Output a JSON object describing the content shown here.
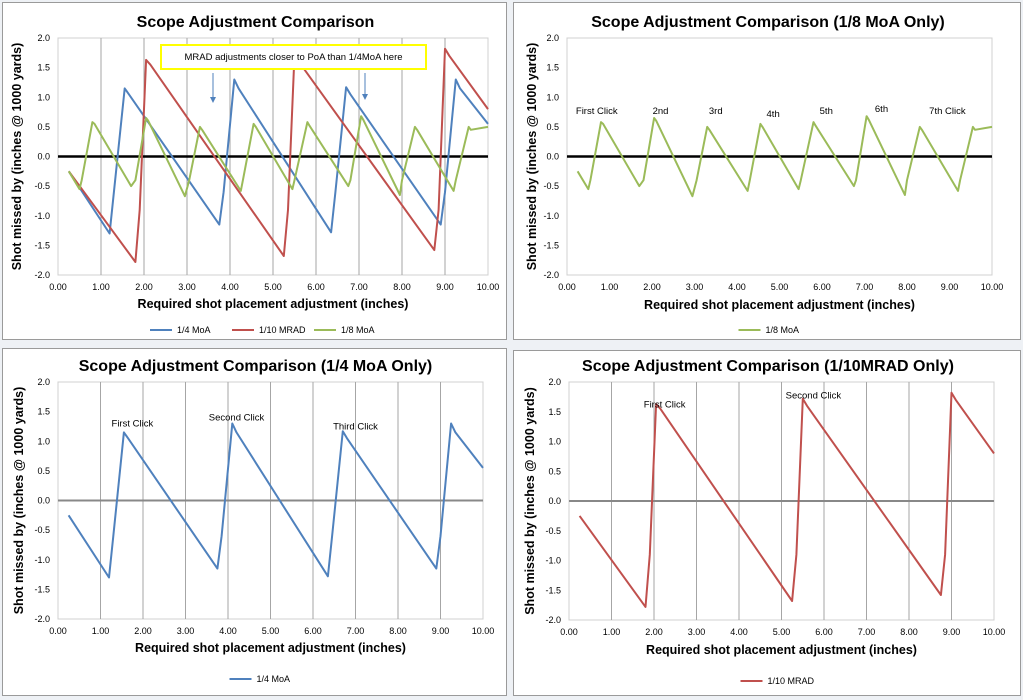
{
  "colors": {
    "quarter_moa": "#4f81bd",
    "tenth_mrad": "#c0504d",
    "eighth_moa": "#9bbb59",
    "grid": "#a6a6a6",
    "callout_border": "#ffff00"
  },
  "chart_data": [
    {
      "type": "line",
      "title": "Scope Adjustment Comparison",
      "xlabel": "Required shot placement adjustment (inches)",
      "ylabel": "Shot missed by (inches @ 1000 yards)",
      "xlim": [
        0,
        10
      ],
      "ylim": [
        -2,
        2
      ],
      "xticks": [
        "0.00",
        "1.00",
        "2.00",
        "3.00",
        "4.00",
        "5.00",
        "6.00",
        "7.00",
        "8.00",
        "9.00",
        "10.00"
      ],
      "yticks": [
        "2.0",
        "1.5",
        "1.0",
        "0.5",
        "0.0",
        "-0.5",
        "-1.0",
        "-1.5",
        "-2.0"
      ],
      "grid": "vertical",
      "legend_position": "bottom",
      "callout": "MRAD adjustments closer to PoA than 1/4MoA here",
      "series": [
        {
          "name": "1/4 MoA",
          "x": [
            0.25,
            1.2,
            1.3,
            1.55,
            1.65,
            3.75,
            3.85,
            4.1,
            4.2,
            6.35,
            6.45,
            6.7,
            6.8,
            8.9,
            9.0,
            9.25,
            9.35,
            10.0
          ],
          "y": [
            -0.25,
            -1.3,
            -0.6,
            1.15,
            1.05,
            -1.15,
            -0.6,
            1.3,
            1.15,
            -1.28,
            -0.6,
            1.17,
            1.05,
            -1.15,
            -0.6,
            1.3,
            1.15,
            0.55
          ]
        },
        {
          "name": "1/10 MRAD",
          "x": [
            0.25,
            1.8,
            1.9,
            2.05,
            2.15,
            5.25,
            5.35,
            5.5,
            5.6,
            8.75,
            8.85,
            9.0,
            9.1,
            10.0
          ],
          "y": [
            -0.25,
            -1.78,
            -0.9,
            1.63,
            1.55,
            -1.68,
            -0.9,
            1.72,
            1.6,
            -1.58,
            -0.9,
            1.82,
            1.7,
            0.8
          ]
        },
        {
          "name": "1/8 MoA",
          "x": [
            0.25,
            0.5,
            0.55,
            0.8,
            0.85,
            1.7,
            1.8,
            2.05,
            2.1,
            2.95,
            3.05,
            3.3,
            3.35,
            4.25,
            4.3,
            4.55,
            4.6,
            5.45,
            5.5,
            5.8,
            5.85,
            6.75,
            6.8,
            7.05,
            7.1,
            7.95,
            8.0,
            8.3,
            8.35,
            9.2,
            9.25,
            9.55,
            9.6,
            10.0
          ],
          "y": [
            -0.25,
            -0.55,
            -0.4,
            0.58,
            0.55,
            -0.5,
            -0.4,
            0.65,
            0.6,
            -0.67,
            -0.4,
            0.5,
            0.45,
            -0.58,
            -0.4,
            0.55,
            0.5,
            -0.55,
            -0.4,
            0.58,
            0.52,
            -0.5,
            -0.4,
            0.68,
            0.62,
            -0.65,
            -0.4,
            0.5,
            0.45,
            -0.58,
            -0.4,
            0.5,
            0.45,
            0.5
          ]
        }
      ]
    },
    {
      "type": "line",
      "title": "Scope Adjustment Comparison (1/8 MoA Only)",
      "xlabel": "Required shot placement adjustment (inches)",
      "ylabel": "Shot missed by (inches @ 1000 yards)",
      "xlim": [
        0,
        10
      ],
      "ylim": [
        -2,
        2
      ],
      "xticks": [
        "0.00",
        "1.00",
        "2.00",
        "3.00",
        "4.00",
        "5.00",
        "6.00",
        "7.00",
        "8.00",
        "9.00",
        "10.00"
      ],
      "yticks": [
        "2.0",
        "1.5",
        "1.0",
        "0.5",
        "0.0",
        "-0.5",
        "-1.0",
        "-1.5",
        "-2.0"
      ],
      "grid": "none",
      "legend_position": "bottom",
      "annotations": [
        {
          "text": "First Click",
          "x": 0.7,
          "y": 0.72
        },
        {
          "text": "2nd",
          "x": 2.2,
          "y": 0.72
        },
        {
          "text": "3rd",
          "x": 3.5,
          "y": 0.72
        },
        {
          "text": "4th",
          "x": 4.85,
          "y": 0.67
        },
        {
          "text": "5th",
          "x": 6.1,
          "y": 0.72
        },
        {
          "text": "6th",
          "x": 7.4,
          "y": 0.75
        },
        {
          "text": "7th Click",
          "x": 8.95,
          "y": 0.72
        }
      ],
      "series": [
        {
          "name": "1/8 MoA",
          "x": [
            0.25,
            0.5,
            0.55,
            0.8,
            0.85,
            1.7,
            1.8,
            2.05,
            2.1,
            2.95,
            3.05,
            3.3,
            3.35,
            4.25,
            4.3,
            4.55,
            4.6,
            5.45,
            5.5,
            5.8,
            5.85,
            6.75,
            6.8,
            7.05,
            7.1,
            7.95,
            8.0,
            8.3,
            8.35,
            9.2,
            9.25,
            9.55,
            9.6,
            10.0
          ],
          "y": [
            -0.25,
            -0.55,
            -0.4,
            0.58,
            0.55,
            -0.5,
            -0.4,
            0.65,
            0.6,
            -0.67,
            -0.4,
            0.5,
            0.45,
            -0.58,
            -0.4,
            0.55,
            0.5,
            -0.55,
            -0.4,
            0.58,
            0.52,
            -0.5,
            -0.4,
            0.68,
            0.62,
            -0.65,
            -0.4,
            0.5,
            0.45,
            -0.58,
            -0.4,
            0.5,
            0.45,
            0.5
          ]
        }
      ]
    },
    {
      "type": "line",
      "title": "Scope Adjustment Comparison (1/4 MoA Only)",
      "xlabel": "Required shot placement adjustment (inches)",
      "ylabel": "Shot missed by (inches @ 1000 yards)",
      "xlim": [
        0,
        10
      ],
      "ylim": [
        -2,
        2
      ],
      "xticks": [
        "0.00",
        "1.00",
        "2.00",
        "3.00",
        "4.00",
        "5.00",
        "6.00",
        "7.00",
        "8.00",
        "9.00",
        "10.00"
      ],
      "yticks": [
        "2.0",
        "1.5",
        "1.0",
        "0.5",
        "0.0",
        "-0.5",
        "-1.0",
        "-1.5",
        "-2.0"
      ],
      "grid": "vertical",
      "legend_position": "bottom",
      "annotations": [
        {
          "text": "First Click",
          "x": 1.75,
          "y": 1.25
        },
        {
          "text": "Second Click",
          "x": 4.2,
          "y": 1.35
        },
        {
          "text": "Third Click",
          "x": 7.0,
          "y": 1.2
        }
      ],
      "series": [
        {
          "name": "1/4 MoA",
          "x": [
            0.25,
            1.2,
            1.3,
            1.55,
            1.65,
            3.75,
            3.85,
            4.1,
            4.2,
            6.35,
            6.45,
            6.7,
            6.8,
            8.9,
            9.0,
            9.25,
            9.35,
            10.0
          ],
          "y": [
            -0.25,
            -1.3,
            -0.6,
            1.15,
            1.05,
            -1.15,
            -0.6,
            1.3,
            1.15,
            -1.28,
            -0.6,
            1.17,
            1.05,
            -1.15,
            -0.6,
            1.3,
            1.15,
            0.55
          ]
        }
      ]
    },
    {
      "type": "line",
      "title": "Scope Adjustment Comparison (1/10MRAD Only)",
      "xlabel": "Required shot placement adjustment (inches)",
      "ylabel": "Shot missed by (inches @ 1000 yards)",
      "xlim": [
        0,
        10
      ],
      "ylim": [
        -2,
        2
      ],
      "xticks": [
        "0.00",
        "1.00",
        "2.00",
        "3.00",
        "4.00",
        "5.00",
        "6.00",
        "7.00",
        "8.00",
        "9.00",
        "10.00"
      ],
      "yticks": [
        "2.0",
        "1.5",
        "1.0",
        "0.5",
        "0.0",
        "-0.5",
        "-1.0",
        "-1.5",
        "-2.0"
      ],
      "grid": "vertical",
      "legend_position": "bottom",
      "annotations": [
        {
          "text": "First Click",
          "x": 2.25,
          "y": 1.57
        },
        {
          "text": "Second Click",
          "x": 5.75,
          "y": 1.72
        }
      ],
      "series": [
        {
          "name": "1/10 MRAD",
          "x": [
            0.25,
            1.8,
            1.9,
            2.05,
            2.15,
            5.25,
            5.35,
            5.5,
            5.6,
            8.75,
            8.85,
            9.0,
            9.1,
            10.0
          ],
          "y": [
            -0.25,
            -1.78,
            -0.9,
            1.63,
            1.55,
            -1.68,
            -0.9,
            1.72,
            1.6,
            -1.58,
            -0.9,
            1.82,
            1.7,
            0.8
          ]
        }
      ]
    }
  ]
}
